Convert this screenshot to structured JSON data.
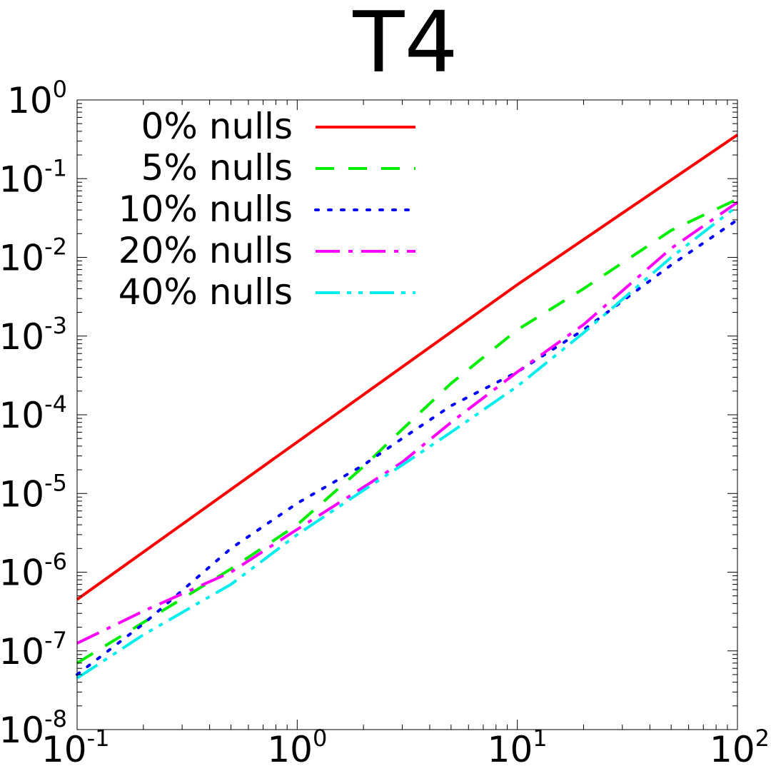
{
  "chart_data": {
    "type": "line",
    "title": "T4",
    "xlabel": "",
    "ylabel": "",
    "x_scale": "log",
    "y_scale": "log",
    "xlim": [
      0.1,
      100
    ],
    "ylim": [
      1e-08,
      1
    ],
    "grid": false,
    "legend_position": "top-left",
    "x_ticks": [
      {
        "base": "10",
        "exp": "-1",
        "value": 0.1
      },
      {
        "base": "10",
        "exp": "0",
        "value": 1
      },
      {
        "base": "10",
        "exp": "1",
        "value": 10
      },
      {
        "base": "10",
        "exp": "2",
        "value": 100
      }
    ],
    "y_ticks": [
      {
        "base": "10",
        "exp": "0",
        "value": 1
      },
      {
        "base": "10",
        "exp": "-1",
        "value": 0.1
      },
      {
        "base": "10",
        "exp": "-2",
        "value": 0.01
      },
      {
        "base": "10",
        "exp": "-3",
        "value": 0.001
      },
      {
        "base": "10",
        "exp": "-4",
        "value": 0.0001
      },
      {
        "base": "10",
        "exp": "-5",
        "value": 1e-05
      },
      {
        "base": "10",
        "exp": "-6",
        "value": 1e-06
      },
      {
        "base": "10",
        "exp": "-7",
        "value": 1e-07
      },
      {
        "base": "10",
        "exp": "-8",
        "value": 1e-08
      }
    ],
    "series": [
      {
        "name": "0% nulls",
        "color": "#ff0000",
        "dash": "solid",
        "x": [
          0.1,
          1,
          10,
          100
        ],
        "y": [
          4.5e-07,
          4.5e-05,
          0.0045,
          0.36
        ]
      },
      {
        "name": "5% nulls",
        "color": "#00ee00",
        "dash": "dashed",
        "x": [
          0.1,
          0.2,
          0.5,
          1,
          2,
          3,
          5,
          10,
          20,
          50,
          100
        ],
        "y": [
          7e-08,
          2.3e-07,
          1.1e-06,
          4e-06,
          2.2e-05,
          6.5e-05,
          0.00025,
          0.0012,
          0.004,
          0.022,
          0.055
        ]
      },
      {
        "name": "10% nulls",
        "color": "#0000ff",
        "dash": "dotted",
        "x": [
          0.1,
          0.2,
          0.5,
          1,
          2,
          3,
          5,
          10,
          20,
          50,
          100
        ],
        "y": [
          5e-08,
          2.2e-07,
          2e-06,
          7.5e-06,
          2.3e-05,
          5e-05,
          0.00013,
          0.00035,
          0.0012,
          0.008,
          0.03
        ]
      },
      {
        "name": "20% nulls",
        "color": "#ff00ff",
        "dash": "dash-dot",
        "x": [
          0.1,
          0.2,
          0.5,
          1,
          2,
          3,
          5,
          10,
          20,
          50,
          100
        ],
        "y": [
          1.25e-07,
          3.2e-07,
          1e-06,
          3.5e-06,
          1.2e-05,
          2.5e-05,
          8e-05,
          0.00035,
          0.0014,
          0.013,
          0.05
        ]
      },
      {
        "name": "40% nulls",
        "color": "#00eeee",
        "dash": "dash-dot-dot",
        "x": [
          0.1,
          0.2,
          0.5,
          1,
          2,
          3,
          5,
          10,
          20,
          50,
          100
        ],
        "y": [
          4.5e-08,
          1.6e-07,
          7e-07,
          3e-06,
          1.1e-05,
          2.3e-05,
          6e-05,
          0.00023,
          0.0011,
          0.01,
          0.045
        ]
      }
    ]
  }
}
